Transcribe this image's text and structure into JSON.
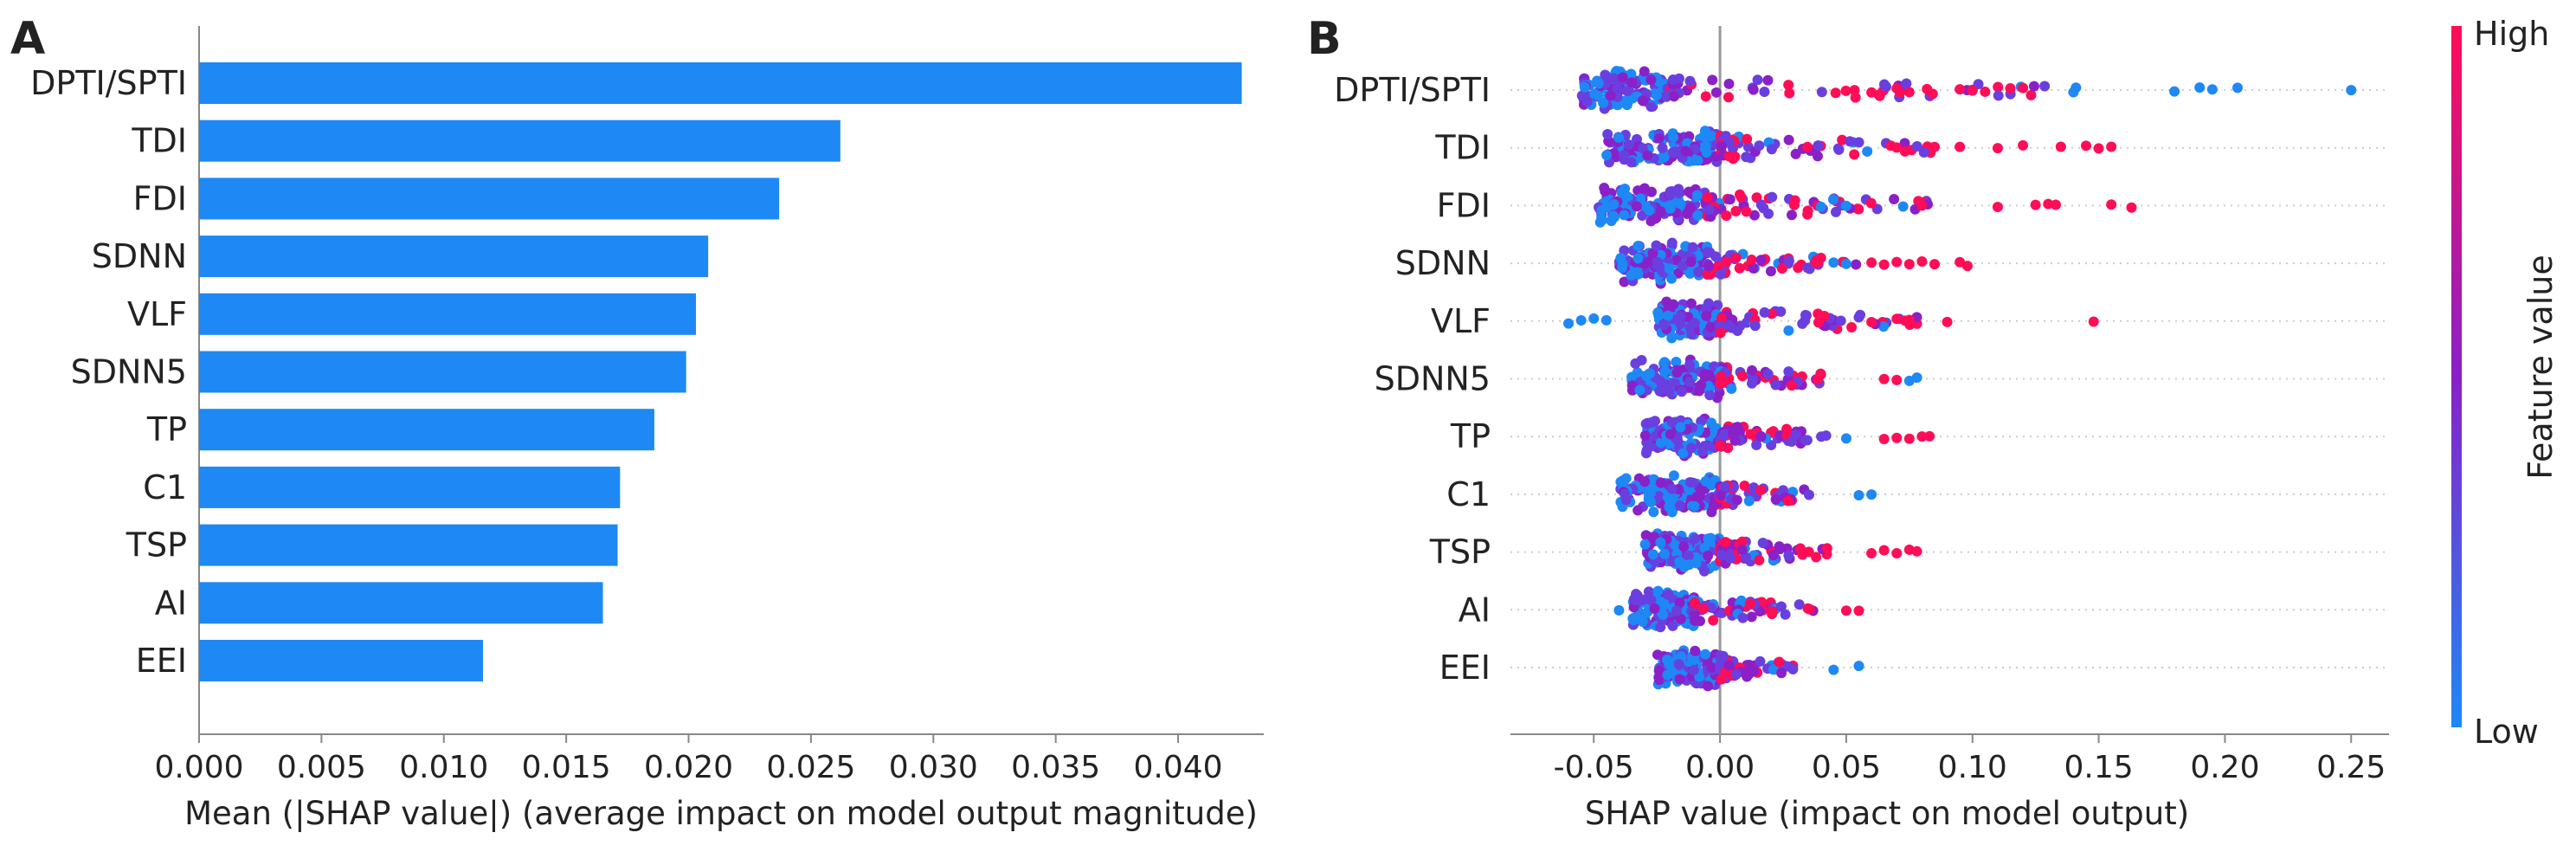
{
  "panels": {
    "a": {
      "label": "A"
    },
    "b": {
      "label": "B"
    }
  },
  "colors": {
    "bar": "#1e88f5",
    "low": "#1e88f5",
    "high": "#ff0d57",
    "mid": "#8a20c8",
    "axis": "#888888",
    "zero_line": "#999999",
    "row_grid": "#cccccc"
  },
  "chart_data": [
    {
      "type": "bar",
      "orientation": "horizontal",
      "xlabel": "Mean (|SHAP value|) (average impact on model output magnitude)",
      "ylabel": "",
      "xlim": [
        0.0,
        0.0435
      ],
      "xticks": [
        0.0,
        0.005,
        0.01,
        0.015,
        0.02,
        0.025,
        0.03,
        0.035,
        0.04
      ],
      "xtick_labels": [
        "0.000",
        "0.005",
        "0.010",
        "0.015",
        "0.020",
        "0.025",
        "0.030",
        "0.035",
        "0.040"
      ],
      "categories": [
        "DPTI/SPTI",
        "TDI",
        "FDI",
        "SDNN",
        "VLF",
        "SDNN5",
        "TP",
        "C1",
        "TSP",
        "AI",
        "EEI"
      ],
      "values": [
        0.0426,
        0.0262,
        0.0237,
        0.0208,
        0.0203,
        0.0199,
        0.0186,
        0.0172,
        0.0171,
        0.0165,
        0.0116
      ]
    },
    {
      "type": "scatter",
      "subtype": "beeswarm",
      "xlabel": "SHAP value (impact on model output)",
      "ylabel": "",
      "xlim": [
        -0.083,
        0.265
      ],
      "xticks": [
        -0.05,
        0.0,
        0.05,
        0.1,
        0.15,
        0.2,
        0.25
      ],
      "xtick_labels": [
        "-0.05",
        "0.00",
        "0.05",
        "0.10",
        "0.15",
        "0.20",
        "0.25"
      ],
      "zero_line": true,
      "colorbar": {
        "label": "Feature value",
        "high_label": "High",
        "low_label": "Low"
      },
      "features": [
        {
          "name": "DPTI/SPTI",
          "core": [
            -0.055,
            -0.02
          ],
          "tail_end": 0.25,
          "outliers_high": [
            0.06,
            0.07,
            0.075,
            0.082,
            0.095,
            0.1,
            0.105,
            0.115,
            0.12
          ],
          "outliers_low": [
            0.14,
            0.141,
            0.18,
            0.19,
            0.195,
            0.205,
            0.25
          ]
        },
        {
          "name": "TDI",
          "core": [
            -0.045,
            0.0
          ],
          "tail_end": 0.155,
          "outliers_high": [
            0.07,
            0.085,
            0.095,
            0.11,
            0.12,
            0.135,
            0.145,
            0.15,
            0.155
          ],
          "outliers_low": []
        },
        {
          "name": "FDI",
          "core": [
            -0.048,
            -0.005
          ],
          "tail_end": 0.163,
          "outliers_high": [
            0.08,
            0.11,
            0.125,
            0.13,
            0.133,
            0.155,
            0.163
          ],
          "outliers_low": [
            0.04,
            0.05
          ]
        },
        {
          "name": "SDNN",
          "core": [
            -0.04,
            -0.005
          ],
          "tail_end": 0.098,
          "outliers_high": [
            0.06,
            0.065,
            0.07,
            0.075,
            0.08,
            0.085,
            0.095,
            0.098
          ],
          "outliers_low": [
            0.045,
            0.05
          ]
        },
        {
          "name": "VLF",
          "core": [
            -0.025,
            0.0
          ],
          "tail_end": 0.148,
          "outliers_high": [
            0.06,
            0.07,
            0.075,
            0.09,
            0.148
          ],
          "outliers_low": [
            -0.06,
            -0.055,
            -0.05,
            -0.045
          ]
        },
        {
          "name": "SDNN5",
          "core": [
            -0.035,
            0.0
          ],
          "tail_end": 0.078,
          "outliers_high": [
            0.065,
            0.07
          ],
          "outliers_low": [
            0.075,
            0.078
          ]
        },
        {
          "name": "TP",
          "core": [
            -0.03,
            0.0
          ],
          "tail_end": 0.083,
          "outliers_high": [
            0.065,
            0.07,
            0.075,
            0.08,
            0.083
          ],
          "outliers_low": [
            0.05
          ]
        },
        {
          "name": "C1",
          "core": [
            -0.04,
            0.0
          ],
          "tail_end": 0.065,
          "outliers_high": [],
          "outliers_low": [
            0.055,
            0.06
          ]
        },
        {
          "name": "TSP",
          "core": [
            -0.03,
            0.0
          ],
          "tail_end": 0.078,
          "outliers_high": [
            0.06,
            0.065,
            0.07,
            0.075,
            0.078
          ],
          "outliers_low": []
        },
        {
          "name": "AI",
          "core": [
            -0.035,
            -0.01
          ],
          "tail_end": 0.068,
          "outliers_high": [
            0.05,
            0.055
          ],
          "outliers_low": [
            -0.04
          ]
        },
        {
          "name": "EEI",
          "core": [
            -0.025,
            0.0
          ],
          "tail_end": 0.055,
          "outliers_high": [],
          "outliers_low": [
            0.045,
            0.055
          ]
        }
      ]
    }
  ]
}
